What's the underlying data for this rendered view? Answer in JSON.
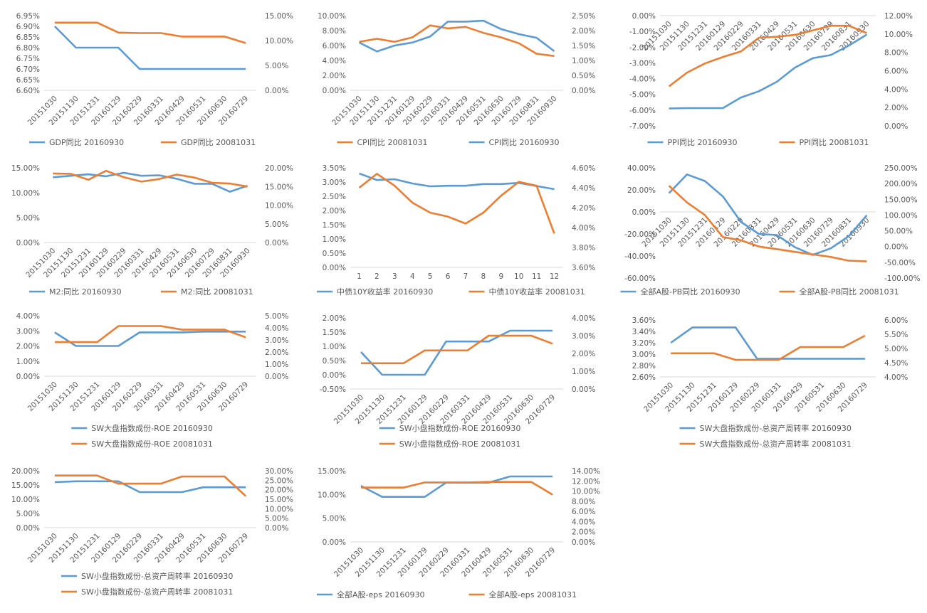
{
  "chart_data": [
    {
      "type": "line",
      "x": [
        "20151030",
        "20151130",
        "20151231",
        "20160129",
        "20160229",
        "20160331",
        "20160429",
        "20160531",
        "20160630",
        "20160729"
      ],
      "left_axis": {
        "ylim": [
          0.066,
          0.0695
        ],
        "ticks": [
          "6.60%",
          "6.65%",
          "6.70%",
          "6.75%",
          "6.80%",
          "6.85%",
          "6.90%",
          "6.95%"
        ]
      },
      "right_axis": {
        "ylim": [
          0,
          0.15
        ],
        "ticks": [
          "0.00%",
          "5.00%",
          "10.00%",
          "15.00%"
        ]
      },
      "series": [
        {
          "name": "GDP同比 20160930",
          "axis": "left",
          "color": "#5B9BD5",
          "values": [
            0.069,
            0.068,
            0.068,
            0.068,
            0.067,
            0.067,
            0.067,
            0.067,
            0.067,
            0.067
          ]
        },
        {
          "name": "GDP同比 20081031",
          "axis": "right",
          "color": "#ED7D31",
          "values": [
            0.136,
            0.136,
            0.136,
            0.116,
            0.115,
            0.115,
            0.108,
            0.108,
            0.108,
            0.095
          ]
        }
      ],
      "legend": "bottom"
    },
    {
      "type": "line",
      "x": [
        "20151030",
        "20151130",
        "20151231",
        "20160129",
        "20160229",
        "20160331",
        "20160429",
        "20160531",
        "20160630",
        "20160729",
        "20160831",
        "20160930"
      ],
      "left_axis": {
        "ylim": [
          0,
          0.1
        ],
        "ticks": [
          "0.00%",
          "2.00%",
          "4.00%",
          "6.00%",
          "8.00%",
          "10.00%"
        ]
      },
      "right_axis": {
        "ylim": [
          0,
          0.025
        ],
        "ticks": [
          "0.00%",
          "0.50%",
          "1.00%",
          "1.50%",
          "2.00%",
          "2.50%"
        ]
      },
      "series": [
        {
          "name": "CPI同比 20081031",
          "axis": "left",
          "color": "#ED7D31",
          "values": [
            0.065,
            0.069,
            0.065,
            0.071,
            0.087,
            0.083,
            0.085,
            0.077,
            0.071,
            0.063,
            0.049,
            0.046
          ]
        },
        {
          "name": "CPI同比 20160930",
          "axis": "right",
          "color": "#5B9BD5",
          "values": [
            0.016,
            0.013,
            0.015,
            0.016,
            0.018,
            0.023,
            0.023,
            0.0233,
            0.0205,
            0.0188,
            0.0176,
            0.0131
          ]
        }
      ],
      "legend": "bottom"
    },
    {
      "type": "line",
      "x": [
        "20151030",
        "20151130",
        "20151231",
        "20160129",
        "20160229",
        "20160331",
        "20160429",
        "20160531",
        "20160630",
        "20160729",
        "20160831",
        "20160930"
      ],
      "left_axis": {
        "ylim": [
          -0.07,
          0
        ],
        "ticks": [
          "-7.00%",
          "-6.00%",
          "-5.00%",
          "-4.00%",
          "-3.00%",
          "-2.00%",
          "-1.00%",
          "0.00%"
        ]
      },
      "right_axis": {
        "ylim": [
          0,
          0.12
        ],
        "ticks": [
          "0.00%",
          "2.00%",
          "4.00%",
          "6.00%",
          "8.00%",
          "10.00%",
          "12.00%"
        ]
      },
      "series": [
        {
          "name": "PPI同比 20160930",
          "axis": "left",
          "color": "#5B9BD5",
          "values": [
            -0.059,
            -0.0587,
            -0.0587,
            -0.0587,
            -0.052,
            -0.048,
            -0.042,
            -0.033,
            -0.027,
            -0.025,
            -0.019,
            -0.012
          ]
        },
        {
          "name": "PPI同比 20081031",
          "axis": "right",
          "color": "#ED7D31",
          "values": [
            0.043,
            0.058,
            0.068,
            0.075,
            0.081,
            0.096,
            0.097,
            0.099,
            0.104,
            0.109,
            0.109,
            0.101
          ]
        }
      ],
      "legend": "bottom"
    },
    {
      "type": "line",
      "x": [
        "20151030",
        "20151130",
        "20151231",
        "20160129",
        "20160229",
        "20160331",
        "20160429",
        "20160531",
        "20160630",
        "20160729",
        "20160831",
        "20160930"
      ],
      "left_axis": {
        "ylim": [
          0,
          0.15
        ],
        "ticks": [
          "0.00%",
          "5.00%",
          "10.00%",
          "15.00%"
        ]
      },
      "right_axis": {
        "ylim": [
          0,
          0.2
        ],
        "ticks": [
          "0.00%",
          "5.00%",
          "10.00%",
          "15.00%",
          "20.00%"
        ]
      },
      "series": [
        {
          "name": "M2:同比 20160930",
          "axis": "left",
          "color": "#5B9BD5",
          "values": [
            0.131,
            0.134,
            0.137,
            0.133,
            0.14,
            0.134,
            0.135,
            0.128,
            0.118,
            0.118,
            0.102,
            0.114
          ]
        },
        {
          "name": "M2:同比 20081031",
          "axis": "right",
          "color": "#ED7D31",
          "values": [
            0.185,
            0.184,
            0.168,
            0.192,
            0.175,
            0.163,
            0.17,
            0.182,
            0.174,
            0.16,
            0.158,
            0.15
          ]
        }
      ],
      "legend": "bottom"
    },
    {
      "type": "line",
      "x": [
        "1",
        "2",
        "3",
        "4",
        "5",
        "6",
        "7",
        "8",
        "9",
        "10",
        "11",
        "12"
      ],
      "left_axis": {
        "ylim": [
          0,
          0.035
        ],
        "ticks": [
          "0.00%",
          "0.50%",
          "1.00%",
          "1.50%",
          "2.00%",
          "2.50%",
          "3.00%",
          "3.50%"
        ]
      },
      "right_axis": {
        "ylim": [
          0.036,
          0.046
        ],
        "ticks": [
          "3.60%",
          "3.80%",
          "4.00%",
          "4.20%",
          "4.40%",
          "4.60%"
        ]
      },
      "series": [
        {
          "name": "中债10Y收益率 20160930",
          "axis": "left",
          "color": "#5B9BD5",
          "values": [
            0.033,
            0.0307,
            0.031,
            0.0295,
            0.0285,
            0.0287,
            0.0287,
            0.0293,
            0.0293,
            0.0297,
            0.0286,
            0.0275
          ]
        },
        {
          "name": "中债10Y收益率 20081031",
          "axis": "right",
          "color": "#ED7D31",
          "values": [
            0.044,
            0.0454,
            0.0442,
            0.0425,
            0.0415,
            0.0411,
            0.0404,
            0.0415,
            0.0432,
            0.0446,
            0.0442,
            0.0394
          ]
        }
      ],
      "legend": "bottom"
    },
    {
      "type": "line",
      "x": [
        "20151030",
        "20151130",
        "20151231",
        "20160129",
        "20160229",
        "20160331",
        "20160429",
        "20160531",
        "20160630",
        "20160729",
        "20160831",
        "20160930"
      ],
      "left_axis": {
        "ylim": [
          -0.6,
          0.4
        ],
        "ticks": [
          "-60.00%",
          "-40.00%",
          "-20.00%",
          "0.00%",
          "20.00%",
          "40.00%"
        ]
      },
      "right_axis": {
        "ylim": [
          -1.0,
          2.5
        ],
        "ticks": [
          "-100.00%",
          "-50.00%",
          "0.00%",
          "50.00%",
          "100.00%",
          "150.00%",
          "200.00%",
          "250.00%"
        ]
      },
      "series": [
        {
          "name": "全部A股-PB同比 20160930",
          "axis": "left",
          "color": "#5B9BD5",
          "values": [
            0.17,
            0.34,
            0.28,
            0.14,
            -0.09,
            -0.2,
            -0.21,
            -0.32,
            -0.39,
            -0.33,
            -0.22,
            -0.03
          ]
        },
        {
          "name": "全部A股-PB同比 20081031",
          "axis": "right",
          "color": "#ED7D31",
          "values": [
            1.93,
            1.4,
            1.0,
            0.3,
            0.2,
            0.0,
            -0.08,
            -0.17,
            -0.25,
            -0.33,
            -0.45,
            -0.47
          ]
        }
      ],
      "legend": "bottom"
    },
    {
      "type": "line",
      "x": [
        "20151030",
        "20151130",
        "20151231",
        "20160129",
        "20160229",
        "20160331",
        "20160429",
        "20160531",
        "20160630",
        "20160729"
      ],
      "left_axis": {
        "ylim": [
          0,
          0.04
        ],
        "ticks": [
          "0.00%",
          "1.00%",
          "2.00%",
          "3.00%",
          "4.00%"
        ]
      },
      "right_axis": {
        "ylim": [
          0,
          0.05
        ],
        "ticks": [
          "0.00%",
          "1.00%",
          "2.00%",
          "3.00%",
          "4.00%",
          "5.00%"
        ]
      },
      "series": [
        {
          "name": "SW大盘指数成份-ROE 20160930",
          "axis": "left",
          "color": "#5B9BD5",
          "values": [
            0.029,
            0.02,
            0.02,
            0.02,
            0.029,
            0.029,
            0.029,
            0.0295,
            0.0295,
            0.0295
          ]
        },
        {
          "name": "SW大盘指数成份-ROE 20081031",
          "axis": "right",
          "color": "#ED7D31",
          "values": [
            0.0282,
            0.0282,
            0.0282,
            0.0415,
            0.0415,
            0.0415,
            0.0385,
            0.0385,
            0.0385,
            0.0322
          ]
        }
      ],
      "legend": "bottom"
    },
    {
      "type": "line",
      "x": [
        "20151030",
        "20151130",
        "20151231",
        "20160129",
        "20160229",
        "20160331",
        "20160429",
        "20160531",
        "20160630",
        "20160729"
      ],
      "left_axis": {
        "ylim": [
          -0.005,
          0.02
        ],
        "ticks": [
          "-0.50%",
          "0.00%",
          "0.50%",
          "1.00%",
          "1.50%",
          "2.00%"
        ]
      },
      "right_axis": {
        "ylim": [
          0,
          0.04
        ],
        "ticks": [
          "0.00%",
          "1.00%",
          "2.00%",
          "3.00%",
          "4.00%"
        ]
      },
      "series": [
        {
          "name": "SW小盘指数成份-ROE 20160930",
          "axis": "left",
          "color": "#5B9BD5",
          "values": [
            0.008,
            0.0,
            0.0,
            0.0,
            0.0117,
            0.0117,
            0.0117,
            0.0155,
            0.0155,
            0.0155
          ]
        },
        {
          "name": "SW小盘指数成份-ROE 20081031",
          "axis": "right",
          "color": "#ED7D31",
          "values": [
            0.0145,
            0.0145,
            0.0145,
            0.0217,
            0.0217,
            0.0217,
            0.03,
            0.03,
            0.03,
            0.0255
          ]
        }
      ],
      "legend": "bottom"
    },
    {
      "type": "line",
      "x": [
        "20151030",
        "20151130",
        "20151231",
        "20160129",
        "20160229",
        "20160331",
        "20160429",
        "20160531",
        "20160630",
        "20160729"
      ],
      "left_axis": {
        "ylim": [
          0.026,
          0.036
        ],
        "ticks": [
          "2.60%",
          "2.80%",
          "3.00%",
          "3.20%",
          "3.40%",
          "3.60%"
        ]
      },
      "right_axis": {
        "ylim": [
          0.04,
          0.06
        ],
        "ticks": [
          "4.00%",
          "4.50%",
          "5.00%",
          "5.50%",
          "6.00%"
        ]
      },
      "series": [
        {
          "name": "SW大盘指数成份-总资产周转率 20160930",
          "axis": "left",
          "color": "#5B9BD5",
          "values": [
            0.032,
            0.0347,
            0.0347,
            0.0347,
            0.0292,
            0.0292,
            0.0292,
            0.0292,
            0.0292,
            0.0292
          ]
        },
        {
          "name": "SW大盘指数成份-总资产周转率 20081031",
          "axis": "right",
          "color": "#ED7D31",
          "values": [
            0.0483,
            0.0483,
            0.0483,
            0.046,
            0.046,
            0.046,
            0.0505,
            0.0505,
            0.0505,
            0.0545
          ]
        }
      ],
      "legend": "bottom"
    },
    {
      "type": "line",
      "x": [
        "20151030",
        "20151130",
        "20151231",
        "20160129",
        "20160229",
        "20160331",
        "20160429",
        "20160531",
        "20160630",
        "20160729"
      ],
      "left_axis": {
        "ylim": [
          0,
          0.2
        ],
        "ticks": [
          "0.00%",
          "5.00%",
          "10.00%",
          "15.00%",
          "20.00%"
        ]
      },
      "right_axis": {
        "ylim": [
          0,
          0.3
        ],
        "ticks": [
          "0.00%",
          "5.00%",
          "10.00%",
          "15.00%",
          "20.00%",
          "25.00%",
          "30.00%"
        ]
      },
      "series": [
        {
          "name": "SW小盘指数成份-总资产周转率 20160930",
          "axis": "left",
          "color": "#5B9BD5",
          "values": [
            0.16,
            0.163,
            0.163,
            0.163,
            0.125,
            0.125,
            0.125,
            0.142,
            0.142,
            0.142
          ]
        },
        {
          "name": "SW小盘指数成份-总资产周转率 20081031",
          "axis": "right",
          "color": "#ED7D31",
          "values": [
            0.275,
            0.275,
            0.275,
            0.232,
            0.232,
            0.232,
            0.27,
            0.27,
            0.27,
            0.167
          ]
        }
      ],
      "legend": "bottom"
    },
    {
      "type": "line",
      "x": [
        "20151030",
        "20151130",
        "20151231",
        "20160129",
        "20160229",
        "20160331",
        "20160429",
        "20160531",
        "20160630",
        "20160729"
      ],
      "left_axis": {
        "ylim": [
          0,
          0.15
        ],
        "ticks": [
          "0.00%",
          "5.00%",
          "10.00%",
          "15.00%"
        ]
      },
      "right_axis": {
        "ylim": [
          0,
          0.14
        ],
        "ticks": [
          "0.00%",
          "2.00%",
          "4.00%",
          "6.00%",
          "8.00%",
          "10.00%",
          "12.00%",
          "14.00%"
        ]
      },
      "series": [
        {
          "name": "全部A股-eps 20160930",
          "axis": "left",
          "color": "#5B9BD5",
          "values": [
            0.118,
            0.095,
            0.095,
            0.095,
            0.125,
            0.125,
            0.125,
            0.138,
            0.138,
            0.138
          ]
        },
        {
          "name": "全部A股-eps 20081031",
          "axis": "right",
          "color": "#ED7D31",
          "values": [
            0.107,
            0.107,
            0.107,
            0.117,
            0.117,
            0.117,
            0.118,
            0.118,
            0.118,
            0.093
          ]
        }
      ],
      "legend": "bottom"
    }
  ]
}
